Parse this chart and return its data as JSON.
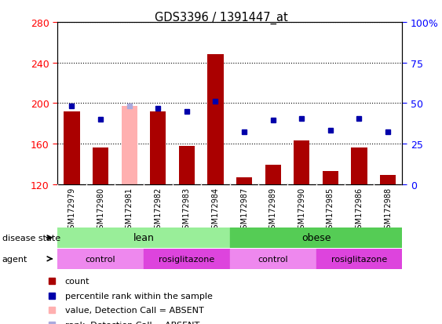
{
  "title": "GDS3396 / 1391447_at",
  "samples": [
    "GSM172979",
    "GSM172980",
    "GSM172981",
    "GSM172982",
    "GSM172983",
    "GSM172984",
    "GSM172987",
    "GSM172989",
    "GSM172990",
    "GSM172985",
    "GSM172986",
    "GSM172988"
  ],
  "count_values": [
    192,
    156,
    197,
    192,
    158,
    248,
    127,
    139,
    163,
    133,
    156,
    129
  ],
  "count_absent": [
    false,
    false,
    true,
    false,
    false,
    false,
    false,
    false,
    false,
    false,
    false,
    false
  ],
  "percentile_values": [
    197,
    184,
    197,
    195,
    192,
    202,
    172,
    183,
    185,
    173,
    185,
    172
  ],
  "percentile_absent": [
    false,
    false,
    true,
    false,
    false,
    false,
    false,
    false,
    false,
    false,
    false,
    false
  ],
  "ylim_left": [
    120,
    280
  ],
  "yticks_left": [
    120,
    160,
    200,
    240,
    280
  ],
  "yticks_right_labels": [
    "0",
    "25",
    "50",
    "75",
    "100%"
  ],
  "bar_color": "#aa0000",
  "bar_absent_color": "#ffb0b0",
  "dot_color": "#0000aa",
  "dot_absent_color": "#aaaadd",
  "plot_bg": "#ffffff",
  "xtick_bg": "#c8c8c8",
  "disease_state_groups": [
    {
      "label": "lean",
      "start": 0,
      "end": 6,
      "color": "#99ee99"
    },
    {
      "label": "obese",
      "start": 6,
      "end": 12,
      "color": "#55cc55"
    }
  ],
  "agent_groups": [
    {
      "label": "control",
      "start": 0,
      "end": 3,
      "color": "#ee88ee"
    },
    {
      "label": "rosiglitazone",
      "start": 3,
      "end": 6,
      "color": "#dd44dd"
    },
    {
      "label": "control",
      "start": 6,
      "end": 9,
      "color": "#ee88ee"
    },
    {
      "label": "rosiglitazone",
      "start": 9,
      "end": 12,
      "color": "#dd44dd"
    }
  ],
  "legend_items": [
    {
      "label": "count",
      "color": "#aa0000"
    },
    {
      "label": "percentile rank within the sample",
      "color": "#0000aa"
    },
    {
      "label": "value, Detection Call = ABSENT",
      "color": "#ffb0b0"
    },
    {
      "label": "rank, Detection Call = ABSENT",
      "color": "#aaaadd"
    }
  ]
}
